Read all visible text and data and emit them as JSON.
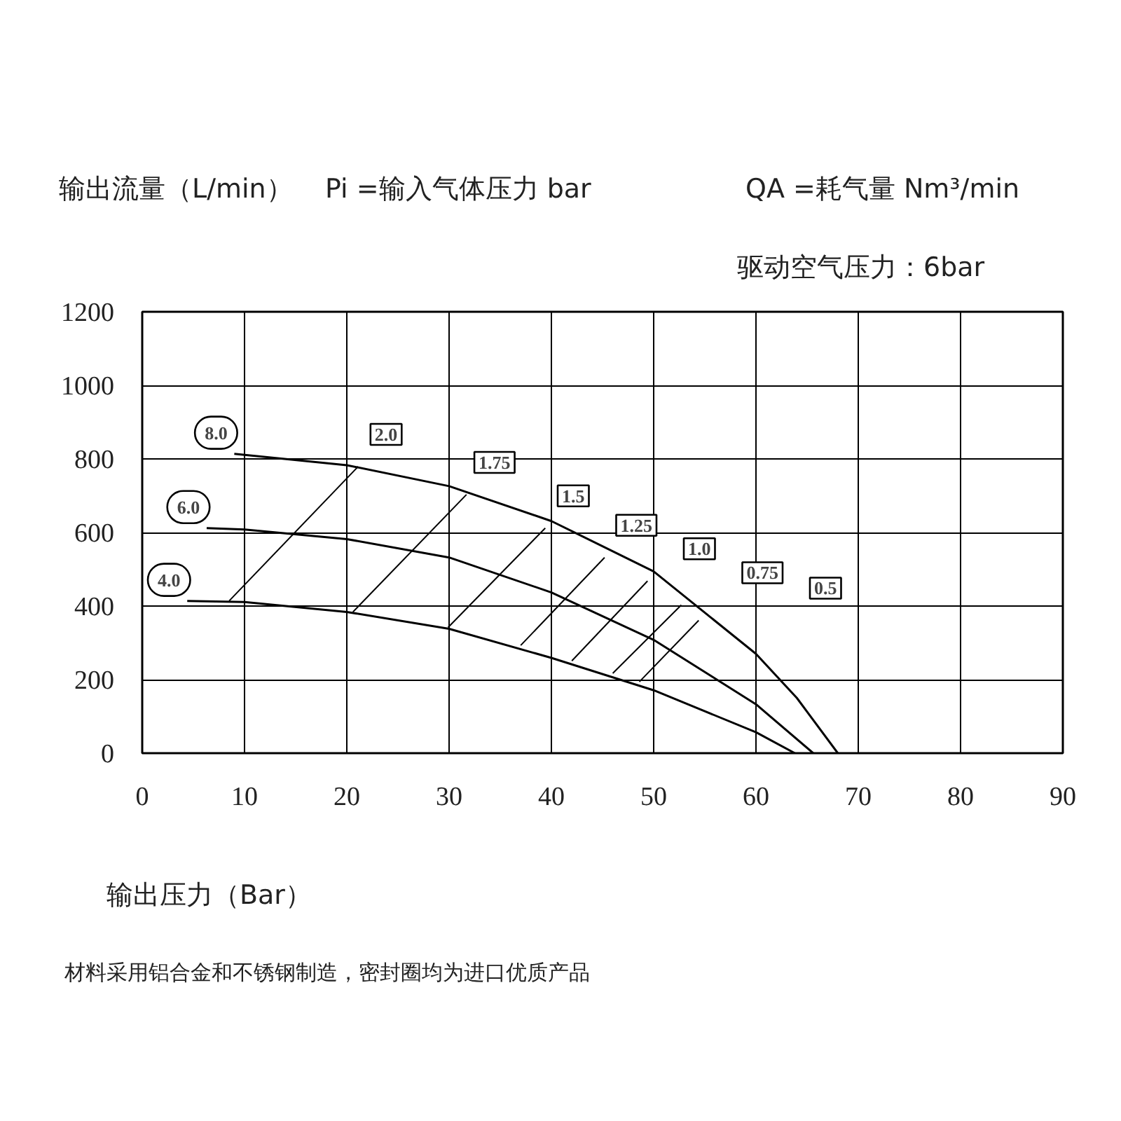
{
  "chart_data": {
    "type": "line",
    "ylabel": "输出流量（L/min）",
    "xlabel": "输出压力（Bar）",
    "annotations": [
      "Pi =输入气体压力 bar",
      "QA =耗气量 Nm³/min",
      "驱动空气压力：6bar",
      "材料采用铝合金和不锈钢制造，密封圈均为进口优质产品"
    ],
    "xlim": [
      0,
      90
    ],
    "xticks": [
      0,
      10,
      20,
      30,
      40,
      50,
      60,
      70,
      80,
      90
    ],
    "ylim": [
      0,
      1200
    ],
    "yticks": [
      0,
      200,
      400,
      600,
      800,
      1000,
      1200
    ],
    "grid": true,
    "series": [
      {
        "name": "8.0",
        "color": "#000000",
        "x": [
          9,
          20,
          30,
          40,
          50,
          60,
          64,
          68
        ],
        "values": [
          814,
          783,
          726,
          631,
          494,
          270,
          150,
          0
        ]
      },
      {
        "name": "6.0",
        "color": "#000000",
        "x": [
          6.3,
          10,
          20,
          30,
          40,
          50,
          60,
          65.6
        ],
        "values": [
          612,
          608,
          582,
          532,
          437,
          308,
          133,
          0
        ]
      },
      {
        "name": "4.0",
        "color": "#000000",
        "x": [
          4.4,
          10,
          20,
          30,
          40,
          50,
          60,
          63.8
        ],
        "values": [
          414,
          411,
          384,
          338,
          259,
          171,
          57,
          0
        ]
      },
      {
        "name": "2.0",
        "color": "#000000",
        "x": [
          8.5,
          21.1
        ],
        "values": [
          414,
          779
        ]
      },
      {
        "name": "1.75",
        "color": "#000000",
        "x": [
          20.6,
          31.7
        ],
        "values": [
          384,
          703
        ]
      },
      {
        "name": "1.5",
        "color": "#000000",
        "x": [
          29.9,
          39.4
        ],
        "values": [
          342,
          612
        ]
      },
      {
        "name": "1.25",
        "color": "#000000",
        "x": [
          37,
          45.2
        ],
        "values": [
          293,
          532
        ]
      },
      {
        "name": "1.0",
        "color": "#000000",
        "x": [
          42,
          49.4
        ],
        "values": [
          251,
          468
        ]
      },
      {
        "name": "0.75",
        "color": "#000000",
        "x": [
          46,
          52.7
        ],
        "values": [
          217,
          403
        ]
      },
      {
        "name": "0.5",
        "color": "#000000",
        "x": [
          48.6,
          54.4
        ],
        "values": [
          194,
          361
        ]
      }
    ]
  }
}
